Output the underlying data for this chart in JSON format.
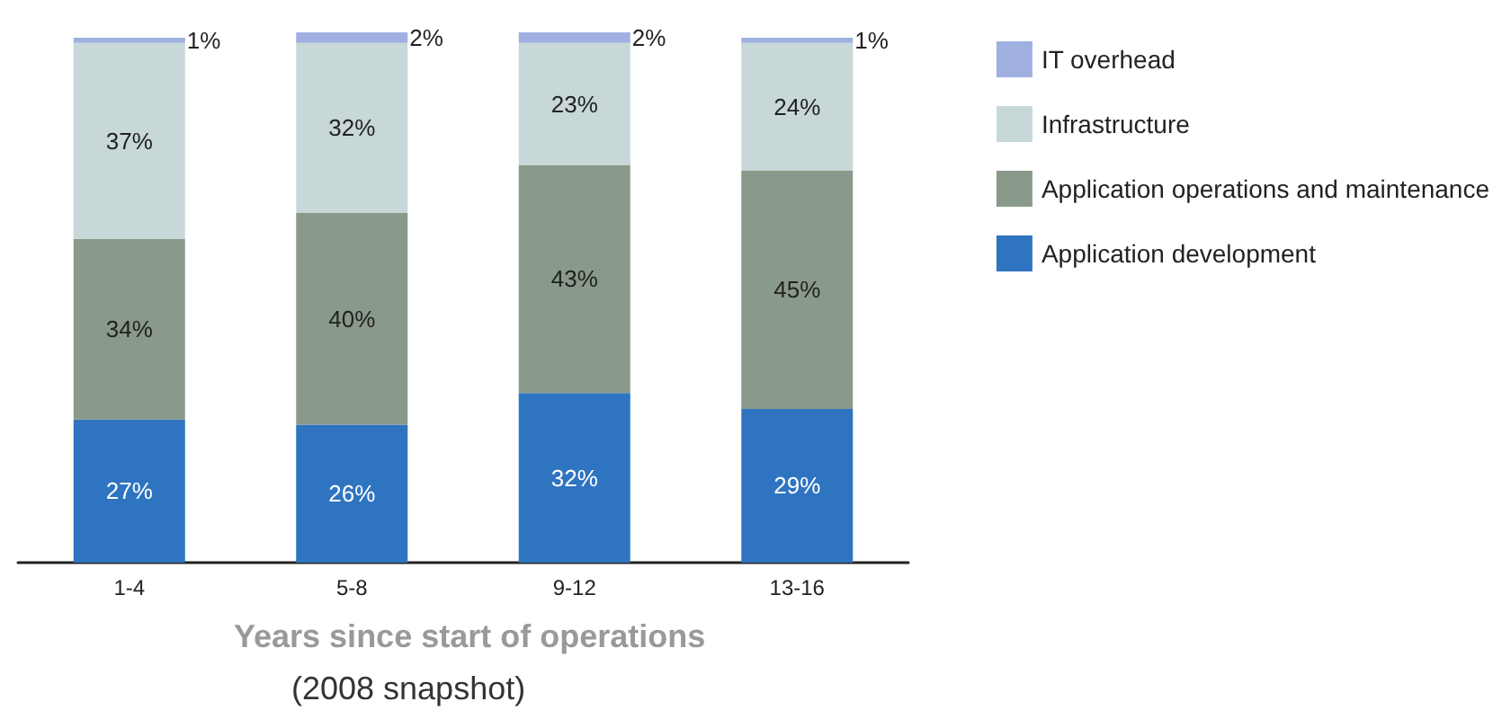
{
  "chart_data": {
    "type": "bar",
    "stacked": true,
    "xlabel": "Years since start of operations",
    "annotations": [
      "(2008 snapshot)"
    ],
    "categories": [
      "1-4",
      "5-8",
      "9-12",
      "13-16"
    ],
    "legend": "top right",
    "grid": false,
    "series": [
      {
        "name": "Application development",
        "color": "#2f74c0",
        "values": [
          27,
          26,
          32,
          29
        ],
        "value_labels": [
          "27%",
          "26%",
          "32%",
          "29%"
        ]
      },
      {
        "name": "Application operations and maintenance",
        "color": "#8a9a8a",
        "values": [
          34,
          40,
          43,
          45
        ],
        "value_labels": [
          "34%",
          "40%",
          "43%",
          "45%"
        ]
      },
      {
        "name": "Infrastructure",
        "color": "#c8d8d8",
        "values": [
          37,
          32,
          23,
          24
        ],
        "value_labels": [
          "37%",
          "32%",
          "23%",
          "24%"
        ]
      },
      {
        "name": "IT overhead",
        "color": "#9fb0e0",
        "values": [
          1,
          2,
          2,
          1
        ],
        "value_labels": [
          "1%",
          "2%",
          "2%",
          "1%"
        ]
      }
    ]
  }
}
